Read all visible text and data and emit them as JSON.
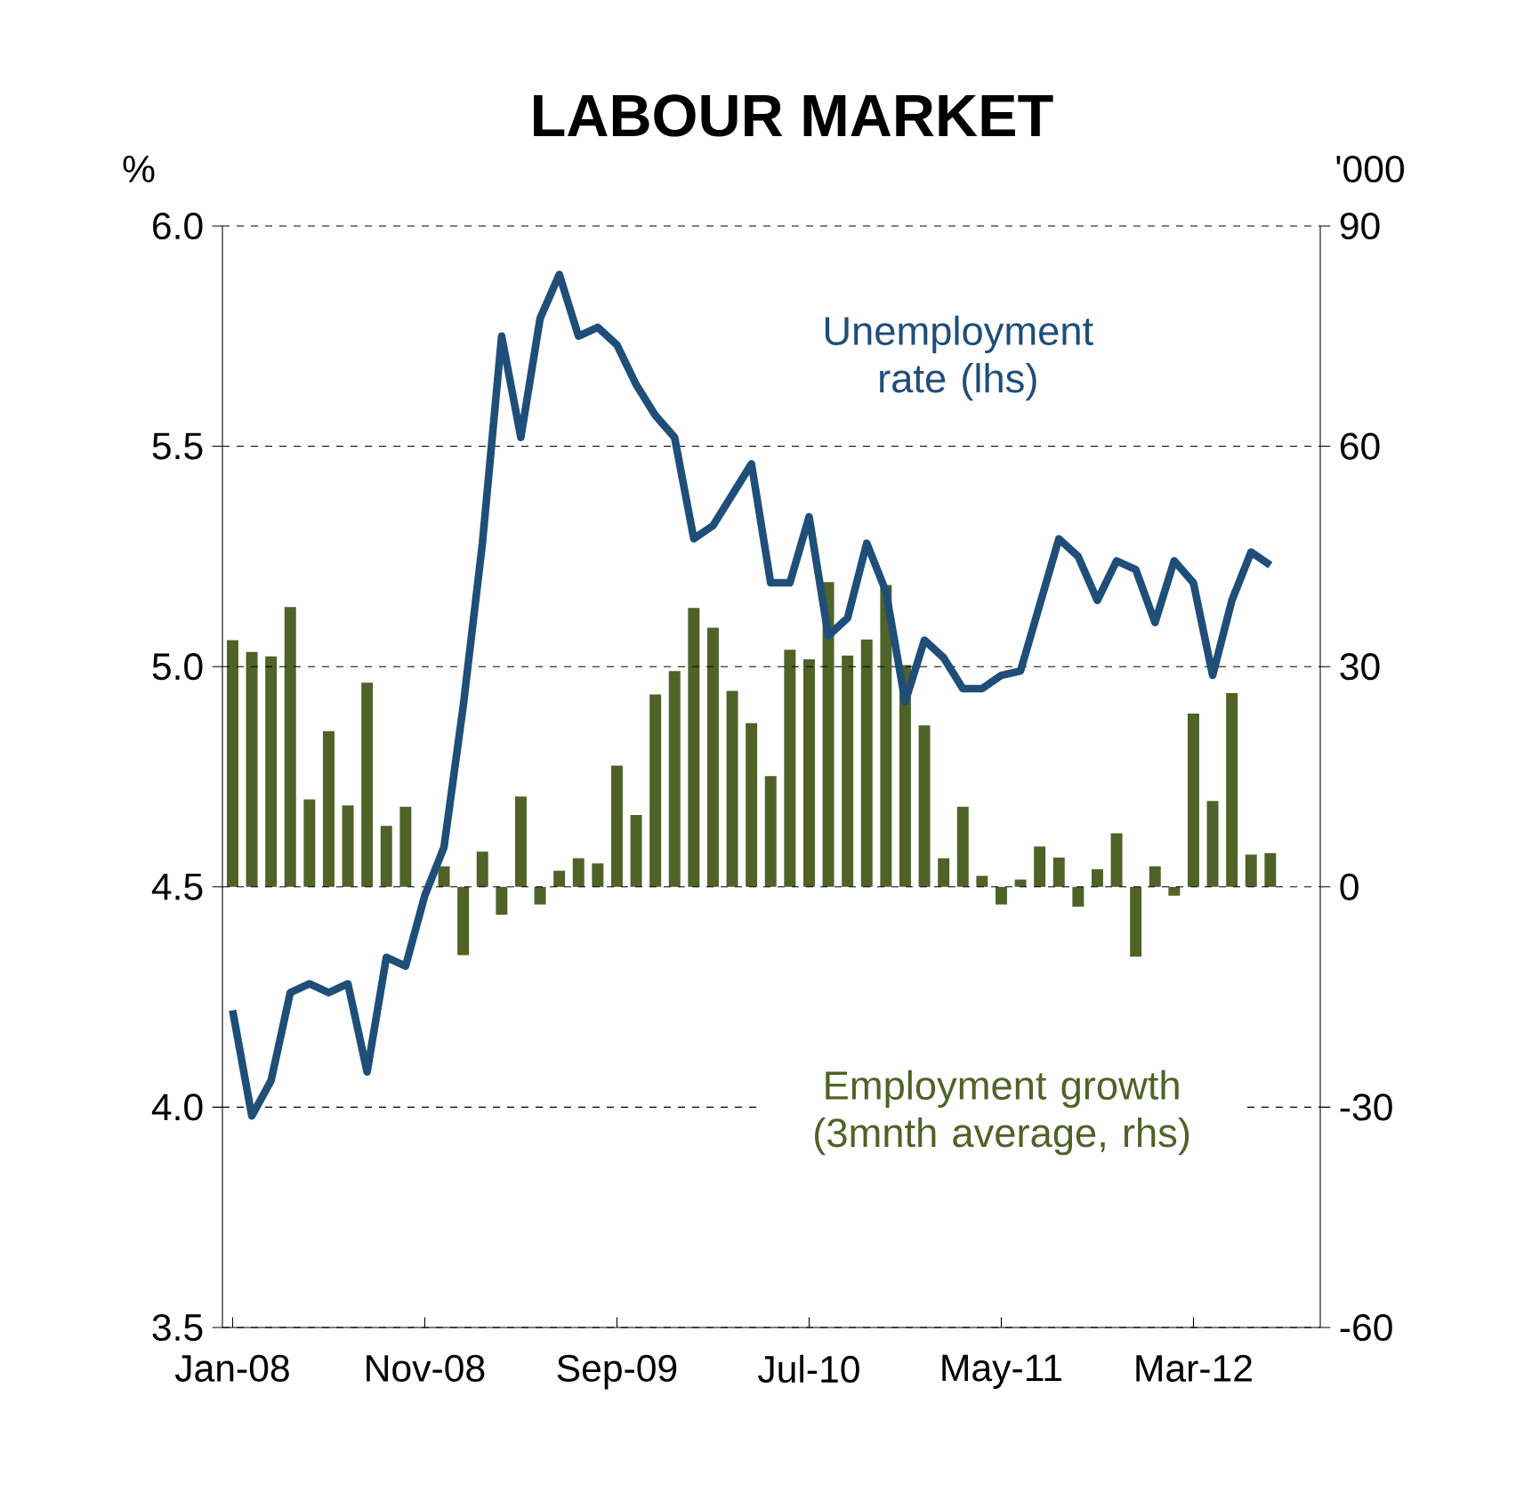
{
  "chart_data": {
    "type": "bar",
    "title": "LABOUR MARKET",
    "ylabel": "%",
    "y2label": "'000",
    "categories": [
      "Jan-08",
      null,
      null,
      null,
      null,
      null,
      null,
      null,
      null,
      null,
      "Nov-08",
      null,
      null,
      null,
      null,
      null,
      null,
      null,
      null,
      null,
      "Sep-09",
      null,
      null,
      null,
      null,
      null,
      null,
      null,
      null,
      null,
      "Jul-10",
      null,
      null,
      null,
      null,
      null,
      null,
      null,
      null,
      null,
      "May-11",
      null,
      null,
      null,
      null,
      null,
      null,
      null,
      null,
      null,
      "Mar-12",
      null,
      null,
      null,
      null
    ],
    "ylim": [
      3.5,
      6.0
    ],
    "yticks": [
      3.5,
      {
        "value": 4,
        "label": "4.0"
      },
      4.5,
      {
        "value": 5,
        "label": "5.0"
      },
      5.5,
      {
        "value": 6,
        "label": "6.0"
      }
    ],
    "y2lim": [
      -60,
      90
    ],
    "y2ticks": [
      -60,
      -30,
      0,
      30,
      60,
      90
    ],
    "grid": "y",
    "series": [
      {
        "name": "Employment growth (3mnth average, rhs)",
        "axis": "y2",
        "color": "#4f6228",
        "values": [
          33.6,
          32.0,
          31.4,
          38.1,
          11.9,
          21.2,
          11.1,
          27.8,
          8.3,
          10.9,
          null,
          2.8,
          -9.3,
          4.8,
          -3.8,
          12.3,
          -2.4,
          2.2,
          3.9,
          3.2,
          16.5,
          9.8,
          26.2,
          29.4,
          38.0,
          35.3,
          26.7,
          22.3,
          15.1,
          32.3,
          31.0,
          41.5,
          31.5,
          33.7,
          41.1,
          30.2,
          22.0,
          3.9,
          10.9,
          1.5,
          -2.4,
          1.0,
          5.5,
          4.0,
          -2.7,
          2.4,
          7.3,
          -9.5,
          2.8,
          -1.2,
          23.6,
          11.7,
          26.4,
          4.4,
          4.6
        ]
      },
      {
        "name": "Unemployment rate (lhs)",
        "type": "line",
        "axis": "y",
        "color": "#1f4e79",
        "values": [
          4.22,
          3.98,
          4.06,
          4.26,
          4.28,
          4.26,
          4.28,
          4.08,
          4.34,
          4.32,
          4.48,
          4.59,
          4.91,
          5.28,
          5.75,
          5.52,
          5.79,
          5.89,
          5.75,
          5.77,
          5.73,
          5.64,
          5.57,
          5.52,
          5.29,
          5.32,
          5.39,
          5.46,
          5.19,
          5.19,
          5.34,
          5.07,
          5.11,
          5.28,
          5.17,
          4.92,
          5.06,
          5.02,
          4.95,
          4.95,
          4.98,
          4.99,
          5.14,
          5.29,
          5.25,
          5.15,
          5.24,
          5.22,
          5.1,
          5.24,
          5.19,
          4.98,
          5.15,
          5.26,
          5.23
        ]
      }
    ]
  }
}
